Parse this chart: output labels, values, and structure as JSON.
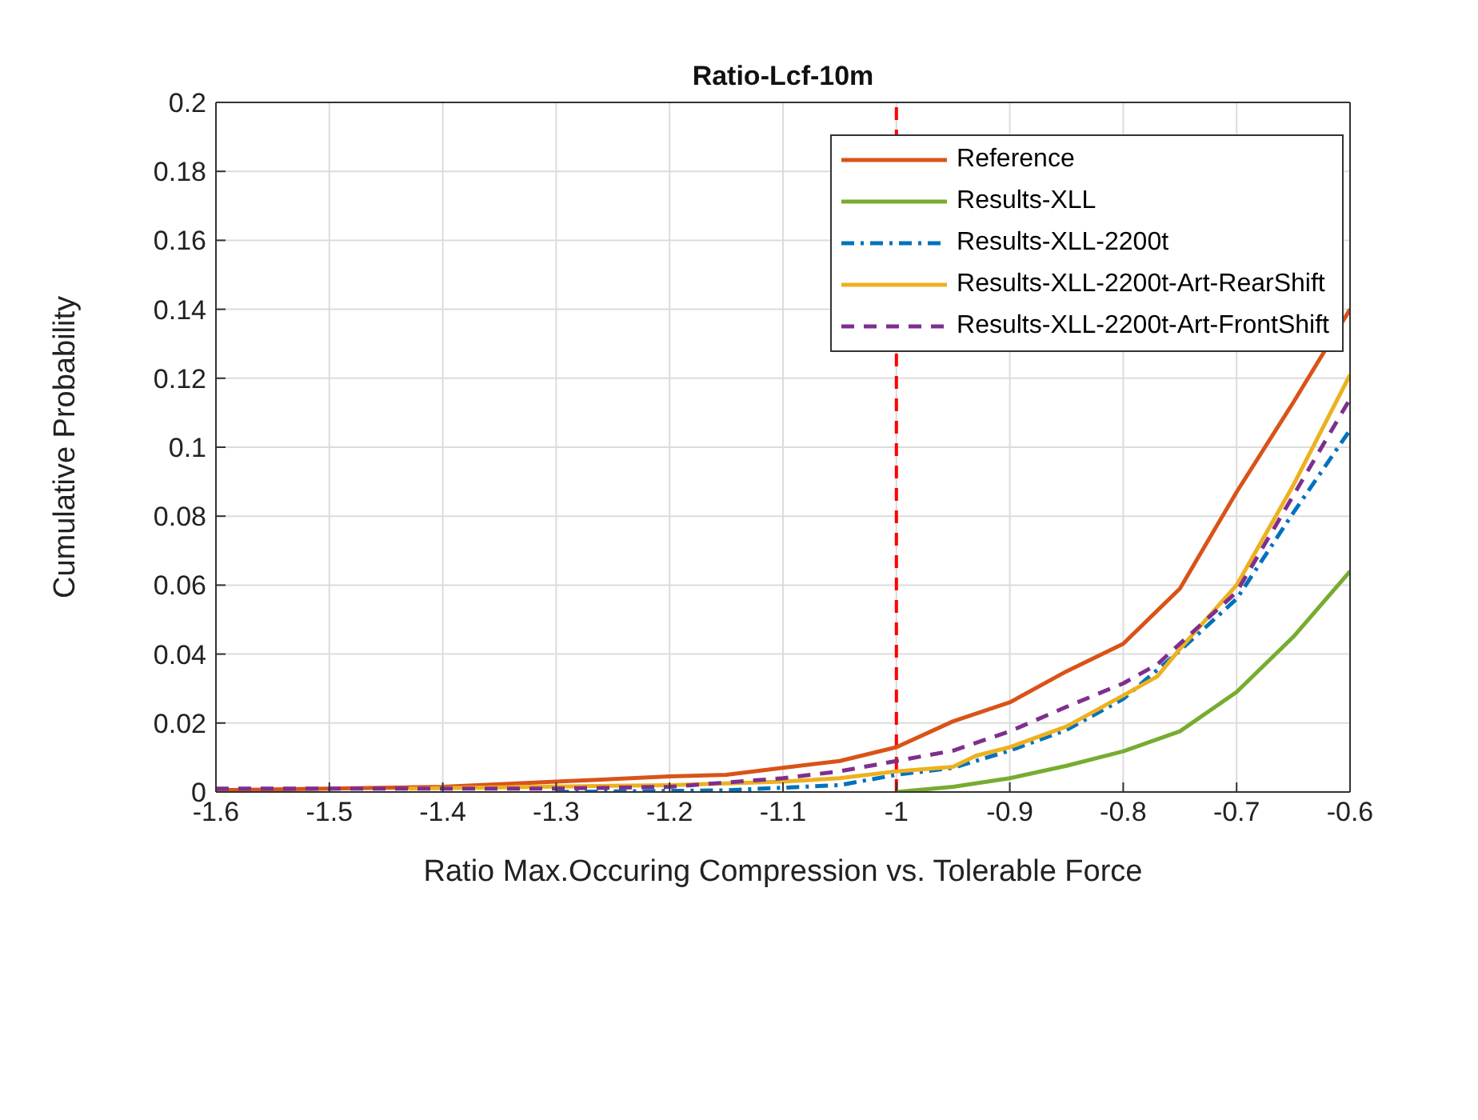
{
  "chart_data": {
    "type": "line",
    "title": "Ratio-Lcf-10m",
    "xlabel": "Ratio Max.Occuring Compression vs. Tolerable Force",
    "ylabel": "Cumulative Probability",
    "xlim": [
      -1.6,
      -0.6
    ],
    "xticks": [
      -1.6,
      -1.5,
      -1.4,
      -1.3,
      -1.2,
      -1.1,
      -1,
      -0.9,
      -0.8,
      -0.7,
      -0.6
    ],
    "ylim": [
      0,
      0.2
    ],
    "yticks": [
      0,
      0.02,
      0.04,
      0.06,
      0.08,
      0.1,
      0.12,
      0.14,
      0.16,
      0.18,
      0.2
    ],
    "grid": true,
    "legend": "top right",
    "marker": "none",
    "ref_lines": [
      {
        "axis": "x",
        "value": -1,
        "color": "#ff0000",
        "line_style": "dashed"
      }
    ],
    "series": [
      {
        "name": "Reference",
        "color": "#d95319",
        "line_style": "solid",
        "x": [
          -1.6,
          -1.5,
          -1.4,
          -1.3,
          -1.2,
          -1.15,
          -1.1,
          -1.05,
          -1,
          -0.95,
          -0.9,
          -0.85,
          -0.8,
          -0.75,
          -0.7,
          -0.65,
          -0.6
        ],
        "values": [
          0.0005,
          0.001,
          0.0015,
          0.003,
          0.0045,
          0.005,
          0.007,
          0.009,
          0.013,
          0.0205,
          0.026,
          0.035,
          0.043,
          0.059,
          0.087,
          0.113,
          0.14
        ]
      },
      {
        "name": "Results-XLL",
        "color": "#77ac30",
        "line_style": "solid",
        "x": [
          -1,
          -0.95,
          -0.9,
          -0.85,
          -0.8,
          -0.75,
          -0.7,
          -0.65,
          -0.6
        ],
        "values": [
          0,
          0.0015,
          0.004,
          0.0076,
          0.0118,
          0.0176,
          0.029,
          0.045,
          0.064
        ]
      },
      {
        "name": "Results-XLL-2200t",
        "color": "#0072bd",
        "line_style": "dashdot",
        "x": [
          -1.3,
          -1.15,
          -1.05,
          -1,
          -0.95,
          -0.9,
          -0.85,
          -0.8,
          -0.75,
          -0.7,
          -0.65,
          -0.6
        ],
        "values": [
          0,
          0.0005,
          0.002,
          0.005,
          0.007,
          0.012,
          0.018,
          0.027,
          0.041,
          0.056,
          0.081,
          0.105
        ]
      },
      {
        "name": "Results-XLL-2200t-Art-RearShift",
        "color": "#edb120",
        "line_style": "solid",
        "x": [
          -1.43,
          -1.2,
          -1.1,
          -1.05,
          -1,
          -0.95,
          -0.93,
          -0.9,
          -0.85,
          -0.8,
          -0.77,
          -0.75,
          -0.7,
          -0.65,
          -0.6
        ],
        "values": [
          0.001,
          0.002,
          0.003,
          0.004,
          0.006,
          0.0073,
          0.0105,
          0.013,
          0.019,
          0.028,
          0.0335,
          0.0415,
          0.06,
          0.089,
          0.121
        ]
      },
      {
        "name": "Results-XLL-2200t-Art-FrontShift",
        "color": "#7e2f8e",
        "line_style": "dashed",
        "x": [
          -1.6,
          -1.3,
          -1.2,
          -1.1,
          -1.05,
          -1,
          -0.95,
          -0.9,
          -0.85,
          -0.8,
          -0.77,
          -0.75,
          -0.7,
          -0.65,
          -0.6
        ],
        "values": [
          0.001,
          0.001,
          0.0015,
          0.004,
          0.006,
          0.009,
          0.012,
          0.0176,
          0.0247,
          0.0315,
          0.037,
          0.043,
          0.058,
          0.086,
          0.114
        ]
      }
    ]
  }
}
